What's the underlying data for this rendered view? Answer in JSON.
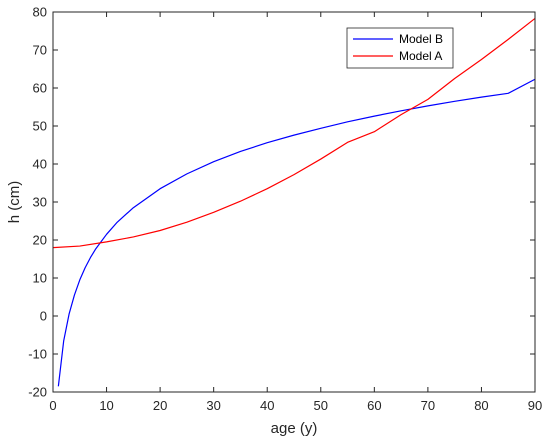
{
  "chart_data": {
    "type": "line",
    "xlabel": "age (y)",
    "ylabel": "h (cm)",
    "xlim": [
      0,
      90
    ],
    "ylim": [
      -20,
      80
    ],
    "xticks": [
      0,
      10,
      20,
      30,
      40,
      50,
      60,
      70,
      80,
      90
    ],
    "yticks": [
      -20,
      -10,
      0,
      10,
      20,
      30,
      40,
      50,
      60,
      70,
      80
    ],
    "grid": false,
    "legend_position": "top-right",
    "series": [
      {
        "name": "Model B",
        "color": "#0000ff",
        "x": [
          1,
          2,
          3,
          4,
          5,
          6,
          7,
          8,
          10,
          12,
          15,
          20,
          25,
          30,
          35,
          40,
          45,
          50,
          55,
          60,
          65,
          70,
          75,
          80,
          85,
          90
        ],
        "y": [
          -18.5,
          -6.5,
          0.5,
          5.5,
          9.5,
          12.7,
          15.4,
          17.7,
          21.5,
          24.7,
          28.5,
          33.5,
          37.4,
          40.6,
          43.3,
          45.6,
          47.6,
          49.4,
          51.1,
          52.6,
          54.0,
          55.3,
          56.5,
          57.6,
          58.6,
          62.3
        ]
      },
      {
        "name": "Model A",
        "color": "#ff0000",
        "x": [
          0,
          5,
          10,
          15,
          20,
          25,
          30,
          35,
          40,
          45,
          50,
          55,
          60,
          65,
          70,
          75,
          80,
          85,
          90
        ],
        "y": [
          18.0,
          18.4,
          19.5,
          20.8,
          22.5,
          24.7,
          27.3,
          30.2,
          33.5,
          37.2,
          41.3,
          45.7,
          48.5,
          53.0,
          57.0,
          62.5,
          67.5,
          72.8,
          78.3
        ]
      }
    ]
  }
}
